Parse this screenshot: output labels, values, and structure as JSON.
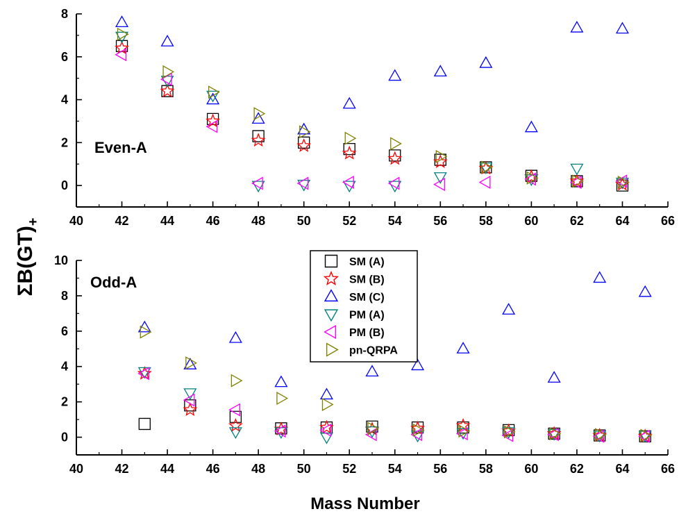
{
  "figure": {
    "ylabel_main": "ΣB(GT)",
    "ylabel_sub": "+",
    "xlabel": "Mass Number"
  },
  "legend": {
    "entries": [
      {
        "label": "SM (A)",
        "marker": "square",
        "color": "#000000"
      },
      {
        "label": "SM (B)",
        "marker": "star",
        "color": "#ff0000"
      },
      {
        "label": "SM (C)",
        "marker": "triangle-up",
        "color": "#0000ff"
      },
      {
        "label": "PM (A)",
        "marker": "triangle-down",
        "color": "#008080"
      },
      {
        "label": "PM (B)",
        "marker": "triangle-left",
        "color": "#ff00ff"
      },
      {
        "label": "pn-QRPA",
        "marker": "triangle-right",
        "color": "#808000"
      }
    ]
  },
  "chart_data": [
    {
      "type": "scatter",
      "panel_label": "Even-A",
      "xlim": [
        40,
        66
      ],
      "ylim": [
        -1,
        8
      ],
      "xticks": [
        40,
        42,
        44,
        46,
        48,
        50,
        52,
        54,
        56,
        58,
        60,
        62,
        64,
        66
      ],
      "yticks": [
        0,
        2,
        4,
        6,
        8
      ],
      "grid": false,
      "series": [
        {
          "name": "SM (A)",
          "x": [
            42,
            44,
            46,
            48,
            50,
            52,
            54,
            56,
            58,
            60,
            62,
            64
          ],
          "y": [
            6.5,
            4.4,
            3.1,
            2.3,
            2.0,
            1.7,
            1.4,
            1.2,
            0.85,
            0.45,
            0.2,
            0.0
          ]
        },
        {
          "name": "SM (B)",
          "x": [
            42,
            44,
            46,
            48,
            50,
            52,
            54,
            56,
            58,
            60,
            62,
            64
          ],
          "y": [
            6.4,
            4.4,
            3.0,
            2.1,
            1.85,
            1.5,
            1.25,
            1.1,
            0.8,
            0.4,
            0.2,
            0.05
          ]
        },
        {
          "name": "SM (C)",
          "x": [
            42,
            44,
            46,
            48,
            50,
            52,
            54,
            56,
            58,
            60,
            62,
            64
          ],
          "y": [
            7.6,
            6.7,
            4.0,
            3.1,
            2.6,
            3.8,
            5.1,
            5.3,
            5.7,
            2.7,
            7.35,
            7.3
          ]
        },
        {
          "name": "PM (A)",
          "x": [
            42,
            44,
            46,
            48,
            50,
            52,
            54,
            56,
            58,
            60,
            62,
            64
          ],
          "y": [
            6.95,
            4.9,
            4.2,
            0.0,
            0.05,
            0.0,
            0.0,
            0.4,
            0.85,
            0.3,
            0.8,
            0.15
          ]
        },
        {
          "name": "PM (B)",
          "x": [
            42,
            44,
            46,
            48,
            50,
            52,
            54,
            56,
            58,
            60,
            62,
            64
          ],
          "y": [
            6.1,
            4.95,
            2.75,
            0.1,
            0.1,
            0.15,
            0.1,
            0.05,
            0.15,
            0.3,
            0.15,
            0.2
          ]
        },
        {
          "name": "pn-QRPA",
          "x": [
            42,
            44,
            46,
            48,
            50,
            52,
            54,
            56,
            58,
            60,
            62,
            64
          ],
          "y": [
            7.05,
            5.3,
            4.35,
            3.35,
            2.5,
            2.2,
            1.95,
            1.35,
            0.85,
            0.35,
            0.2,
            0.15
          ]
        }
      ]
    },
    {
      "type": "scatter",
      "panel_label": "Odd-A",
      "xlim": [
        40,
        66
      ],
      "ylim": [
        -1,
        10
      ],
      "xticks": [
        40,
        42,
        44,
        46,
        48,
        50,
        52,
        54,
        56,
        58,
        60,
        62,
        64,
        66
      ],
      "yticks": [
        0,
        2,
        4,
        6,
        8,
        10
      ],
      "grid": false,
      "series": [
        {
          "name": "SM (A)",
          "x": [
            43,
            45,
            47,
            49,
            51,
            53,
            55,
            57,
            59,
            61,
            63,
            65
          ],
          "y": [
            0.75,
            1.8,
            1.15,
            0.5,
            0.55,
            0.6,
            0.55,
            0.55,
            0.4,
            0.2,
            0.1,
            0.05
          ]
        },
        {
          "name": "SM (B)",
          "x": [
            43,
            45,
            47,
            49,
            51,
            53,
            55,
            57,
            59,
            61,
            63,
            65
          ],
          "y": [
            3.6,
            1.55,
            0.65,
            0.45,
            0.55,
            0.45,
            0.5,
            0.65,
            0.35,
            0.2,
            0.1,
            0.05
          ]
        },
        {
          "name": "SM (C)",
          "x": [
            43,
            45,
            47,
            49,
            51,
            53,
            55,
            57,
            59,
            61,
            63,
            65
          ],
          "y": [
            6.2,
            4.1,
            5.6,
            3.1,
            2.4,
            3.7,
            4.05,
            5.0,
            7.2,
            3.35,
            9.0,
            8.2
          ]
        },
        {
          "name": "PM (A)",
          "x": [
            43,
            45,
            47,
            49,
            51,
            53,
            55,
            57,
            59,
            61,
            63,
            65
          ],
          "y": [
            3.7,
            2.5,
            0.3,
            0.3,
            0.0,
            0.35,
            0.1,
            0.25,
            0.3,
            0.2,
            0.1,
            0.1
          ]
        },
        {
          "name": "PM (B)",
          "x": [
            43,
            45,
            47,
            49,
            51,
            53,
            55,
            57,
            59,
            61,
            63,
            65
          ],
          "y": [
            3.6,
            2.1,
            1.55,
            0.35,
            0.4,
            0.15,
            0.15,
            0.2,
            0.1,
            0.15,
            0.05,
            0.05
          ]
        },
        {
          "name": "pn-QRPA",
          "x": [
            43,
            45,
            47,
            49,
            51,
            53,
            55,
            57,
            59,
            61,
            63,
            65
          ],
          "y": [
            5.95,
            4.2,
            3.2,
            2.2,
            1.85,
            0.5,
            0.4,
            0.35,
            0.3,
            0.2,
            0.15,
            0.1
          ]
        }
      ]
    }
  ]
}
